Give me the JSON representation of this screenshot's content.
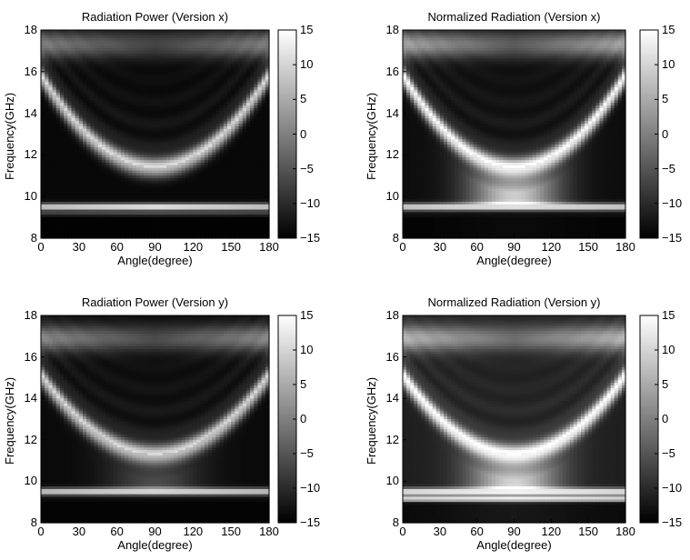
{
  "chart_data": [
    {
      "type": "heatmap",
      "title": "Radiation Power (Version x)",
      "xlabel": "Angle(degree)",
      "ylabel": "Frequency(GHz)",
      "xlim": [
        0,
        180
      ],
      "ylim": [
        8,
        18
      ],
      "xticks": [
        0,
        30,
        60,
        90,
        120,
        150,
        180
      ],
      "yticks": [
        8,
        10,
        12,
        14,
        16,
        18
      ],
      "colorbar": {
        "range": [
          -15,
          15
        ],
        "ticks": [
          15,
          10,
          5,
          0,
          -5,
          -10,
          -15
        ],
        "colormap": "gray"
      },
      "features": {
        "v_curve": {
          "min_freq": 11.4,
          "edge_freq": 15.8,
          "brightness": 0.72
        },
        "band_lines": [
          {
            "freq": 9.5,
            "brightness": 0.95,
            "width": 0.12
          },
          {
            "freq": 9.15,
            "brightness": 0.3,
            "width": 0.05
          }
        ],
        "top_glow": {
          "freq": 17.3,
          "brightness": 0.42
        },
        "background": 0.03,
        "center_fill": 0.0
      }
    },
    {
      "type": "heatmap",
      "title": "Normalized Radiation (Version x)",
      "xlabel": "Angle(degree)",
      "ylabel": "Frequency(GHz)",
      "xlim": [
        0,
        180
      ],
      "ylim": [
        8,
        18
      ],
      "xticks": [
        0,
        30,
        60,
        90,
        120,
        150,
        180
      ],
      "yticks": [
        8,
        10,
        12,
        14,
        16,
        18
      ],
      "colorbar": {
        "range": [
          -15,
          15
        ],
        "ticks": [
          15,
          10,
          5,
          0,
          -5,
          -10,
          -15
        ],
        "colormap": "gray"
      },
      "features": {
        "v_curve": {
          "min_freq": 11.4,
          "edge_freq": 15.8,
          "brightness": 0.85
        },
        "band_lines": [
          {
            "freq": 9.5,
            "brightness": 0.95,
            "width": 0.12
          }
        ],
        "top_glow": {
          "freq": 17.3,
          "brightness": 0.55
        },
        "background": 0.05,
        "center_fill": 0.75
      }
    },
    {
      "type": "heatmap",
      "title": "Radiation Power (Version y)",
      "xlabel": "Angle(degree)",
      "ylabel": "Frequency(GHz)",
      "xlim": [
        0,
        180
      ],
      "ylim": [
        8,
        18
      ],
      "xticks": [
        0,
        30,
        60,
        90,
        120,
        150,
        180
      ],
      "yticks": [
        8,
        10,
        12,
        14,
        16,
        18
      ],
      "colorbar": {
        "range": [
          -15,
          15
        ],
        "ticks": [
          15,
          10,
          5,
          0,
          -5,
          -10,
          -15
        ],
        "colormap": "gray"
      },
      "features": {
        "v_curve": {
          "min_freq": 11.3,
          "edge_freq": 15.1,
          "brightness": 0.7
        },
        "band_lines": [
          {
            "freq": 9.5,
            "brightness": 0.9,
            "width": 0.12
          }
        ],
        "top_glow": {
          "freq": 16.9,
          "brightness": 0.45
        },
        "background": 0.04,
        "center_fill": 0.25
      }
    },
    {
      "type": "heatmap",
      "title": "Normalized Radiation (Version y)",
      "xlabel": "Angle(degree)",
      "ylabel": "Frequency(GHz)",
      "xlim": [
        0,
        180
      ],
      "ylim": [
        8,
        18
      ],
      "xticks": [
        0,
        30,
        60,
        90,
        120,
        150,
        180
      ],
      "yticks": [
        8,
        10,
        12,
        14,
        16,
        18
      ],
      "colorbar": {
        "range": [
          -15,
          15
        ],
        "ticks": [
          15,
          10,
          5,
          0,
          -5,
          -10,
          -15
        ],
        "colormap": "gray"
      },
      "features": {
        "v_curve": {
          "min_freq": 11.3,
          "edge_freq": 15.1,
          "brightness": 0.82
        },
        "band_lines": [
          {
            "freq": 9.5,
            "brightness": 0.95,
            "width": 0.12
          },
          {
            "freq": 9.15,
            "brightness": 0.85,
            "width": 0.1
          }
        ],
        "top_glow": {
          "freq": 16.9,
          "brightness": 0.55
        },
        "background": 0.12,
        "center_fill": 0.7
      }
    }
  ]
}
